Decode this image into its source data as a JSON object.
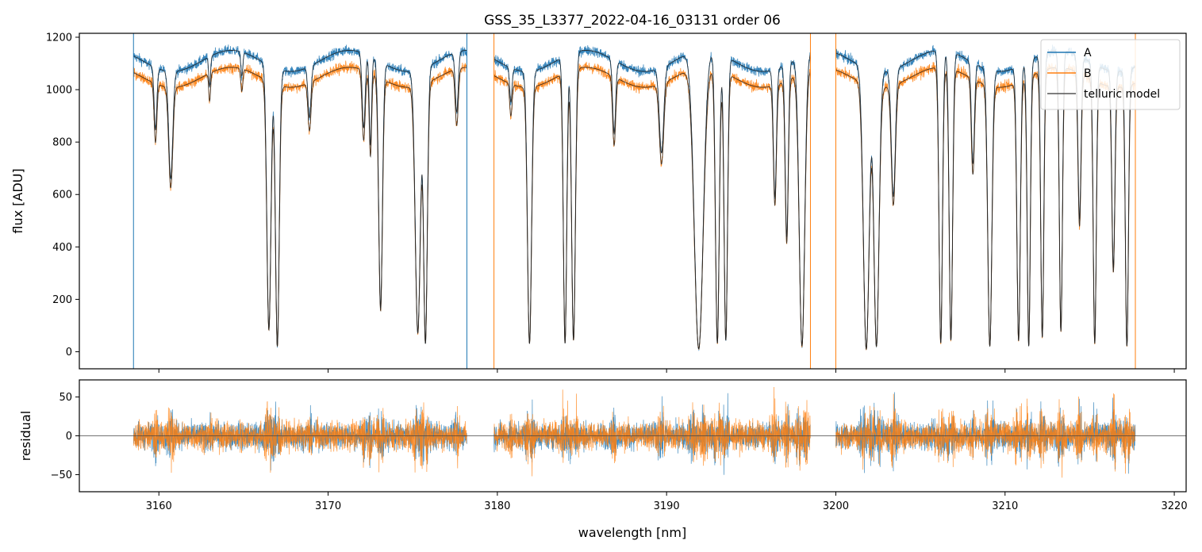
{
  "chart_data": [
    {
      "type": "line",
      "title": "GSS_35_L3377_2022-04-16_03131  order 06",
      "xlabel": "",
      "ylabel": "flux [ADU]",
      "xlim": [
        3155.3,
        3220.7
      ],
      "ylim": [
        -65,
        1215
      ],
      "yticks": [
        0,
        200,
        400,
        600,
        800,
        1000,
        1200
      ],
      "ytick_labels": [
        "0",
        "200",
        "400",
        "600",
        "800",
        "1000",
        "1200"
      ],
      "legend_position": "top-right",
      "segments": [
        [
          3158.5,
          3178.2
        ],
        [
          3179.8,
          3198.5
        ],
        [
          3200.0,
          3217.7
        ]
      ],
      "continuum": {
        "A": 1150,
        "B": 1085
      },
      "lines": [
        [
          3159.8,
          80,
          0.22
        ],
        [
          3160.7,
          120,
          0.38
        ],
        [
          3163.0,
          55,
          0.1
        ],
        [
          3164.9,
          60,
          0.08
        ],
        [
          3166.5,
          120,
          0.92
        ],
        [
          3167.0,
          110,
          0.98
        ],
        [
          3168.9,
          90,
          0.18
        ],
        [
          3172.1,
          90,
          0.25
        ],
        [
          3172.5,
          70,
          0.3
        ],
        [
          3173.1,
          110,
          0.85
        ],
        [
          3175.3,
          150,
          0.93
        ],
        [
          3175.75,
          110,
          0.97
        ],
        [
          3177.6,
          90,
          0.2
        ],
        [
          3180.8,
          70,
          0.12
        ],
        [
          3181.9,
          120,
          0.97
        ],
        [
          3184.0,
          100,
          0.97
        ],
        [
          3184.5,
          110,
          0.96
        ],
        [
          3186.9,
          90,
          0.25
        ],
        [
          3189.7,
          130,
          0.3
        ],
        [
          3191.9,
          260,
          0.99
        ],
        [
          3193.0,
          110,
          0.97
        ],
        [
          3193.5,
          100,
          0.96
        ],
        [
          3196.4,
          90,
          0.45
        ],
        [
          3197.1,
          90,
          0.6
        ],
        [
          3198.0,
          160,
          0.98
        ],
        [
          3201.8,
          170,
          0.99
        ],
        [
          3202.4,
          150,
          0.98
        ],
        [
          3203.4,
          120,
          0.45
        ],
        [
          3206.2,
          100,
          0.97
        ],
        [
          3206.8,
          100,
          0.96
        ],
        [
          3208.1,
          90,
          0.35
        ],
        [
          3209.1,
          120,
          0.98
        ],
        [
          3210.8,
          100,
          0.96
        ],
        [
          3211.4,
          90,
          0.98
        ],
        [
          3212.2,
          90,
          0.95
        ],
        [
          3213.3,
          90,
          0.93
        ],
        [
          3214.4,
          90,
          0.55
        ],
        [
          3215.3,
          90,
          0.97
        ],
        [
          3216.4,
          90,
          0.7
        ],
        [
          3217.2,
          90,
          0.98
        ]
      ],
      "series": [
        {
          "name": "A",
          "color": "#1f77b4"
        },
        {
          "name": "B",
          "color": "#ff7f0e"
        },
        {
          "name": "telluric model",
          "color": "#555555"
        }
      ]
    },
    {
      "type": "line",
      "xlabel": "wavelength [nm]",
      "ylabel": "residual",
      "xlim": [
        3155.3,
        3220.7
      ],
      "ylim": [
        -72,
        72
      ],
      "xticks": [
        3160,
        3170,
        3180,
        3190,
        3200,
        3210,
        3220
      ],
      "xtick_labels": [
        "3160",
        "3170",
        "3180",
        "3190",
        "3200",
        "3210",
        "3220"
      ],
      "yticks": [
        -50,
        0,
        50
      ],
      "ytick_labels": [
        "−50",
        "0",
        "50"
      ],
      "zero_line": 0,
      "series": [
        {
          "name": "A residual",
          "color": "#1f77b4",
          "approx_noise": 22
        },
        {
          "name": "B residual",
          "color": "#ff7f0e",
          "approx_noise": 24
        }
      ]
    }
  ]
}
